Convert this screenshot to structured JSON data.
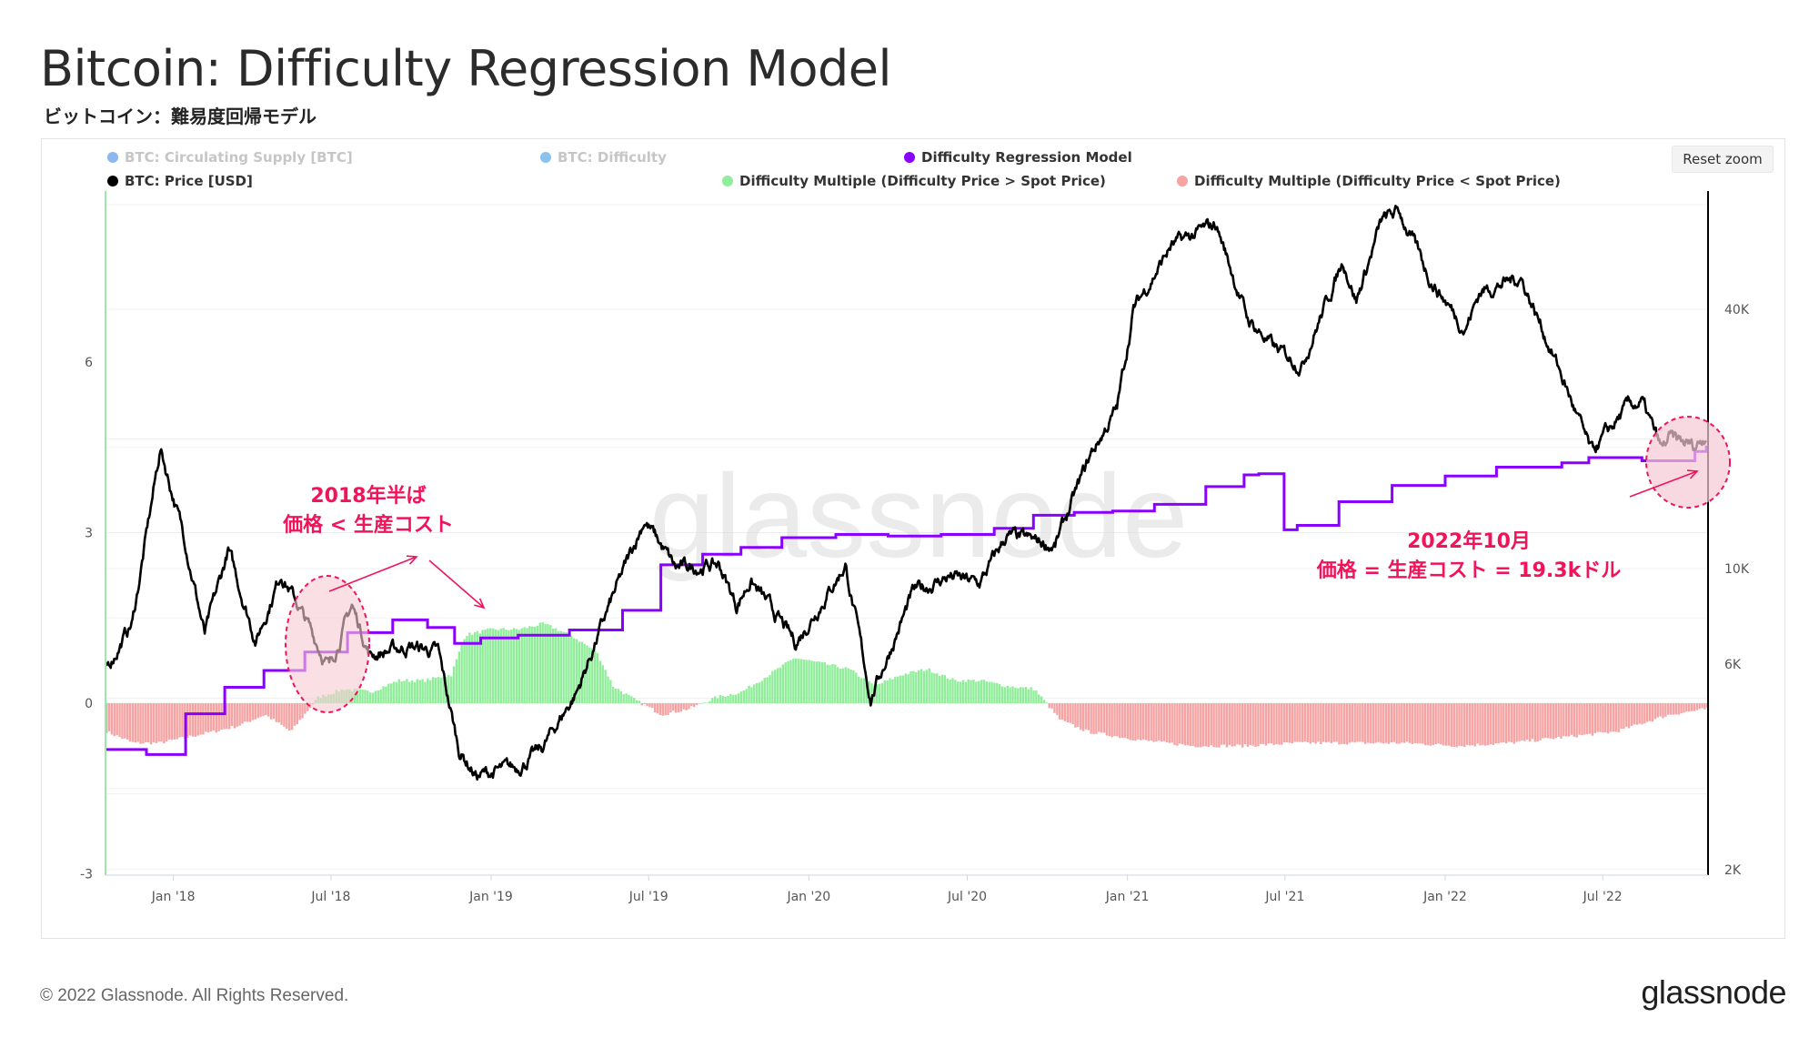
{
  "header": {
    "title": "Bitcoin: Difficulty Regression Model",
    "subtitle": "ビットコイン：難易度回帰モデル"
  },
  "toolbar": {
    "reset_zoom_label": "Reset zoom"
  },
  "footer": {
    "copyright": "© 2022 Glassnode. All Rights Reserved.",
    "logo": "glassnode"
  },
  "watermark": "glassnode",
  "colors": {
    "model": "#8a00ff",
    "price": "#000000",
    "multiple_pos": "#90ee9a",
    "multiple_neg": "#f5a3a3",
    "annotation": "#f0145a",
    "supply": "#2d7be0",
    "difficulty": "#2a8fe0"
  },
  "chart_data": {
    "type": "line",
    "x_ticks": [
      "Jan '18",
      "Jul '18",
      "Jan '19",
      "Jul '19",
      "Jan '20",
      "Jul '20",
      "Jan '21",
      "Jul '21",
      "Jan '22",
      "Jul '22"
    ],
    "y_left_ticks": [
      "6",
      "3",
      "0",
      "-3"
    ],
    "y_right_ticks": [
      "40K",
      "10K",
      "6K",
      "2K"
    ],
    "legend": [
      {
        "name": "BTC: Circulating Supply [BTC]",
        "color": "#2d7be0",
        "enabled": false
      },
      {
        "name": "BTC: Difficulty",
        "color": "#2a8fe0",
        "enabled": false
      },
      {
        "name": "Difficulty Regression Model",
        "color": "#8a00ff",
        "enabled": true
      },
      {
        "name": "BTC: Price [USD]",
        "color": "#000000",
        "enabled": true
      },
      {
        "name": "Difficulty Multiple (Difficulty Price > Spot Price)",
        "color": "#90ee9a",
        "enabled": true
      },
      {
        "name": "Difficulty Multiple (Difficulty Price < Spot Price)",
        "color": "#f5a3a3",
        "enabled": true
      }
    ],
    "y_left_range": [
      -3,
      7.5
    ],
    "y_right_scale": "log",
    "y_right_range": [
      2000,
      70000
    ],
    "series": [
      {
        "name": "BTC: Price [USD]",
        "axis": "right",
        "x": [
          "2017-10-15",
          "2017-11-15",
          "2017-12-17",
          "2018-01-15",
          "2018-02-06",
          "2018-03-05",
          "2018-04-06",
          "2018-05-05",
          "2018-06-29",
          "2018-07-25",
          "2018-08-15",
          "2018-09-30",
          "2018-11-01",
          "2018-11-25",
          "2018-12-15",
          "2019-01-30",
          "2019-02-28",
          "2019-04-10",
          "2019-05-15",
          "2019-06-26",
          "2019-08-01",
          "2019-09-20",
          "2019-10-10",
          "2019-10-26",
          "2019-12-17",
          "2020-02-12",
          "2020-03-12",
          "2020-04-30",
          "2020-06-10",
          "2020-07-15",
          "2020-08-15",
          "2020-10-10",
          "2020-11-20",
          "2020-12-20",
          "2021-01-08",
          "2021-02-20",
          "2021-04-13",
          "2021-05-19",
          "2021-06-22",
          "2021-07-20",
          "2021-09-06",
          "2021-09-21",
          "2021-10-20",
          "2021-11-09",
          "2021-12-15",
          "2022-01-24",
          "2022-02-10",
          "2022-03-29",
          "2022-05-12",
          "2022-06-18",
          "2022-07-30",
          "2022-08-15",
          "2022-09-07",
          "2022-09-15",
          "2022-10-15",
          "2022-10-28"
        ],
        "values": [
          5800,
          7500,
          19000,
          11500,
          7000,
          11000,
          6800,
          9800,
          5900,
          8200,
          6300,
          6600,
          6400,
          3800,
          3300,
          3450,
          3800,
          5200,
          8000,
          13000,
          10000,
          10200,
          8200,
          9400,
          6700,
          10200,
          5000,
          8800,
          9600,
          9200,
          11900,
          11300,
          18400,
          23500,
          40000,
          56000,
          63000,
          38000,
          32000,
          29800,
          52000,
          42000,
          64000,
          67500,
          47000,
          36000,
          44000,
          47500,
          29000,
          18500,
          23800,
          24300,
          18800,
          20000,
          19200,
          20600
        ]
      },
      {
        "name": "Difficulty Regression Model",
        "axis": "right",
        "x": [
          "2017-10-15",
          "2017-12-01",
          "2018-01-15",
          "2018-03-01",
          "2018-04-15",
          "2018-06-01",
          "2018-07-20",
          "2018-09-10",
          "2018-10-20",
          "2018-11-20",
          "2018-12-20",
          "2019-02-01",
          "2019-04-01",
          "2019-06-01",
          "2019-07-15",
          "2019-09-01",
          "2019-10-15",
          "2019-12-01",
          "2020-02-01",
          "2020-04-01",
          "2020-06-01",
          "2020-08-01",
          "2020-09-15",
          "2020-11-01",
          "2020-12-15",
          "2021-02-01",
          "2021-04-01",
          "2021-05-15",
          "2021-06-01",
          "2021-06-30",
          "2021-07-15",
          "2021-09-01",
          "2021-11-01",
          "2022-01-01",
          "2022-03-01",
          "2022-05-15",
          "2022-06-15",
          "2022-08-15",
          "2022-10-15",
          "2022-10-28"
        ],
        "values": [
          3800,
          3700,
          4600,
          5300,
          5800,
          6400,
          7100,
          7600,
          7300,
          6700,
          6900,
          7000,
          7200,
          8000,
          10200,
          10800,
          11200,
          11800,
          12000,
          11900,
          12000,
          12400,
          13300,
          13500,
          13600,
          14100,
          15500,
          16500,
          16600,
          12300,
          12600,
          14300,
          15600,
          16400,
          17200,
          17600,
          18100,
          17800,
          18700,
          19300
        ]
      },
      {
        "name": "Difficulty Multiple",
        "axis": "left",
        "x": [
          "2017-10-15",
          "2017-11-15",
          "2017-12-15",
          "2018-01-15",
          "2018-02-15",
          "2018-03-15",
          "2018-04-15",
          "2018-05-15",
          "2018-06-15",
          "2018-07-15",
          "2018-08-15",
          "2018-09-15",
          "2018-10-15",
          "2018-11-15",
          "2018-12-01",
          "2019-01-01",
          "2019-02-01",
          "2019-03-01",
          "2019-04-01",
          "2019-05-01",
          "2019-05-20",
          "2019-06-15",
          "2019-07-15",
          "2019-08-15",
          "2019-09-15",
          "2019-10-15",
          "2019-11-15",
          "2019-12-15",
          "2020-01-15",
          "2020-02-15",
          "2020-03-15",
          "2020-04-15",
          "2020-05-15",
          "2020-06-15",
          "2020-07-15",
          "2020-08-15",
          "2020-09-15",
          "2020-10-15",
          "2020-11-15",
          "2021-01-15",
          "2021-03-15",
          "2021-05-15",
          "2021-07-15",
          "2021-09-15",
          "2021-11-15",
          "2022-01-15",
          "2022-03-15",
          "2022-05-15",
          "2022-07-15",
          "2022-09-15",
          "2022-10-28"
        ],
        "values": [
          -0.5,
          -0.7,
          -0.7,
          -0.6,
          -0.5,
          -0.4,
          -0.2,
          -0.5,
          0.1,
          0.25,
          0.2,
          0.4,
          0.4,
          0.5,
          1.2,
          1.3,
          1.3,
          1.4,
          1.2,
          0.9,
          0.3,
          0.05,
          -0.2,
          -0.1,
          0.1,
          0.2,
          0.5,
          0.8,
          0.7,
          0.6,
          0.3,
          0.5,
          0.6,
          0.4,
          0.4,
          0.3,
          0.25,
          -0.3,
          -0.5,
          -0.65,
          -0.75,
          -0.75,
          -0.7,
          -0.7,
          -0.7,
          -0.75,
          -0.7,
          -0.6,
          -0.5,
          -0.2,
          -0.1
        ]
      }
    ],
    "annotations": [
      {
        "text": [
          "2018年半ば",
          "価格 < 生産コスト"
        ]
      },
      {
        "text": [
          "2022年10月",
          "価格 = 生産コスト =  19.3kドル"
        ]
      }
    ]
  }
}
